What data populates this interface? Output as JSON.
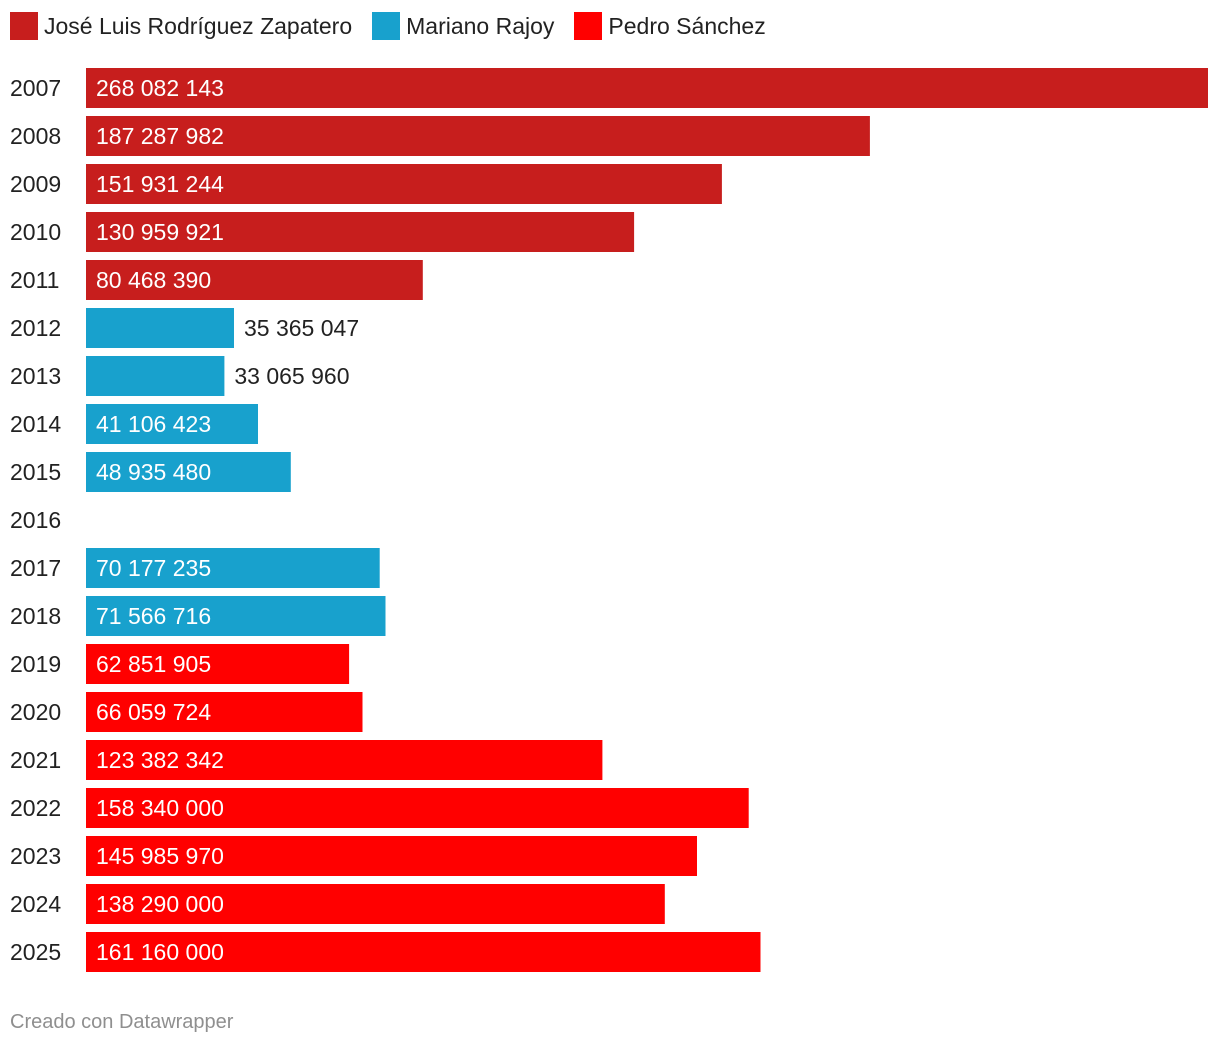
{
  "legend": [
    {
      "label": "José Luis Rodríguez Zapatero",
      "color": "#c71e1d"
    },
    {
      "label": "Mariano Rajoy",
      "color": "#18a1cd"
    },
    {
      "label": "Pedro Sánchez",
      "color": "#ff0000"
    }
  ],
  "footer": "Creado con Datawrapper",
  "chart_data": {
    "type": "bar",
    "orientation": "horizontal",
    "categories": [
      "2007",
      "2008",
      "2009",
      "2010",
      "2011",
      "2012",
      "2013",
      "2014",
      "2015",
      "2016",
      "2017",
      "2018",
      "2019",
      "2020",
      "2021",
      "2022",
      "2023",
      "2024",
      "2025"
    ],
    "values": [
      268082143,
      187287982,
      151931244,
      130959921,
      80468390,
      35365047,
      33065960,
      41106423,
      48935480,
      null,
      70177235,
      71566716,
      62851905,
      66059724,
      123382342,
      158340000,
      145985970,
      138290000,
      161160000
    ],
    "labels": [
      "268 082 143",
      "187 287 982",
      "151 931 244",
      "130 959 921",
      "80 468 390",
      "35 365 047",
      "33 065 960",
      "41 106 423",
      "48 935 480",
      "",
      "70 177 235",
      "71 566 716",
      "62 851 905",
      "66 059 724",
      "123 382 342",
      "158 340 000",
      "145 985 970",
      "138 290 000",
      "161 160 000"
    ],
    "series_of_bar": [
      0,
      0,
      0,
      0,
      0,
      1,
      1,
      1,
      1,
      null,
      1,
      1,
      2,
      2,
      2,
      2,
      2,
      2,
      2
    ],
    "xlim": [
      0,
      268082143
    ],
    "grid": false,
    "legend_position": "top-left"
  }
}
